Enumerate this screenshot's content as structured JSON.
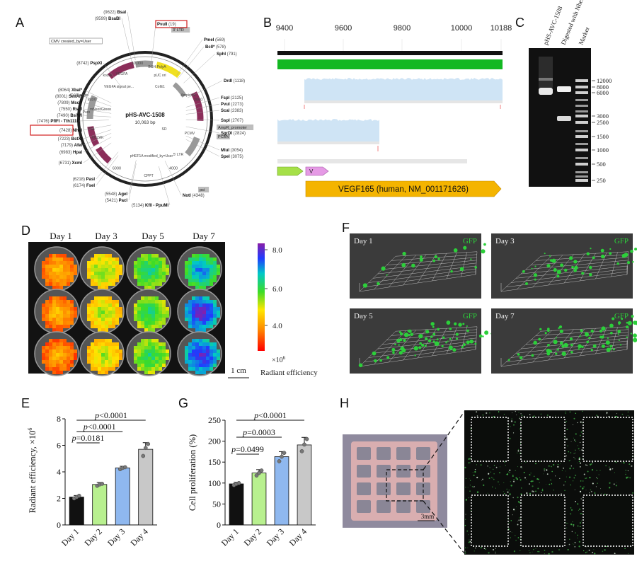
{
  "colors": {
    "plasmid_block": "#8b2e5a",
    "gray_feature": "#9a9a9a",
    "yellow_feature": "#f0e020",
    "green_track": "#13b822",
    "coverage_fill": "#cfe4f5",
    "vegf_arrow": "#f4b400",
    "bar_day1": "#111111",
    "bar_day2": "#b8f08f",
    "bar_day3": "#8fb8ef",
    "bar_day4": "#c8c8c8",
    "gfp_dots": "#2ccf3a",
    "highlight_box": "#d11f1f"
  },
  "panels": {
    "A": {
      "letter": "A",
      "plasmid_name": "pHS-AVC-1508",
      "plasmid_size": "10,063 bp",
      "tick_labels": [
        "10,000",
        "2000",
        "4000",
        "6000",
        "8000"
      ],
      "inner_labels": [
        "kozak",
        "VEGFA",
        "BGH PolyA",
        "VEGFA signal pe...",
        "CoIE1",
        "pUC ori",
        "SD",
        "pHEF1A modified_by=User",
        "mNeonGreen",
        "P2A",
        "KOZAK",
        "Puro",
        "CPPT",
        "SV40 origin",
        "Ampicillin",
        "PCMV",
        "5' LTR"
      ],
      "features_outside": [
        "3' LTR",
        "AmpR_promoter",
        "PCMV",
        "psi",
        "CMV created_by=User"
      ],
      "sites": [
        {
          "pos": "(9622)",
          "name": "BsaI"
        },
        {
          "pos": "(9599)",
          "name": "BsaBI"
        },
        {
          "pos": "(19)",
          "name": "PvuII"
        },
        {
          "pos": "(569)",
          "name": "PmeI"
        },
        {
          "pos": "(578)",
          "name": "BclI*"
        },
        {
          "pos": "(791)",
          "name": "SphI"
        },
        {
          "pos": "(1118)",
          "name": "DrdI"
        },
        {
          "pos": "(8742)",
          "name": "PspXI"
        },
        {
          "pos": "(8064)",
          "name": "XbaI*"
        },
        {
          "pos": "(8001)",
          "name": "SexAI*"
        },
        {
          "pos": "(7809)",
          "name": "MscI*"
        },
        {
          "pos": "(7550)",
          "name": "RsrII"
        },
        {
          "pos": "(7490)",
          "name": "BsiWI"
        },
        {
          "pos": "(7476)",
          "name": "PflFI - Tth111I"
        },
        {
          "pos": "(7428)",
          "name": "NheI"
        },
        {
          "pos": "(7223)",
          "name": "BstXI"
        },
        {
          "pos": "(7179)",
          "name": "AfeI"
        },
        {
          "pos": "(6983)",
          "name": "HpaI"
        },
        {
          "pos": "(6731)",
          "name": "XcmI"
        },
        {
          "pos": "(2125)",
          "name": "FspI"
        },
        {
          "pos": "(2273)",
          "name": "PvuI"
        },
        {
          "pos": "(2383)",
          "name": "ScaI"
        },
        {
          "pos": "(2707)",
          "name": "SspI"
        },
        {
          "pos": "(2824)",
          "name": "SgrDI"
        },
        {
          "pos": "(3054)",
          "name": "MluI"
        },
        {
          "pos": "(3075)",
          "name": "SpeI"
        },
        {
          "pos": "(6218)",
          "name": "PasI"
        },
        {
          "pos": "(6174)",
          "name": "FseI"
        },
        {
          "pos": "(5548)",
          "name": "AgeI"
        },
        {
          "pos": "(5421)",
          "name": "PacI"
        },
        {
          "pos": "(4348)",
          "name": "NotI"
        },
        {
          "pos": "(5134)",
          "name": "KflI - PpuMI"
        }
      ]
    },
    "B": {
      "letter": "B",
      "ticks": [
        "9400",
        "9600",
        "9800",
        "10000",
        "10188"
      ],
      "small_arrow_label": "V",
      "gene_label": "VEGF165 (human, NM_001171626)"
    },
    "C": {
      "letter": "C",
      "lane_labels": [
        "pHS-AVC-1508",
        "Digested  with NheI/PvuII",
        "Marker"
      ],
      "marker_sizes": [
        "12000",
        "8000",
        "6000",
        "3000",
        "2500",
        "1500",
        "1000",
        "500",
        "250"
      ]
    },
    "D": {
      "letter": "D",
      "day_labels": [
        "Day 1",
        "Day 3",
        "Day 5",
        "Day 7"
      ],
      "scale_bar": "1 cm",
      "colorbar_ticks": [
        "8.0",
        "6.0",
        "4.0"
      ],
      "colorbar_multiplier": "×10",
      "colorbar_exponent": "6",
      "colorbar_title": "Radiant efficiency",
      "well_levels": [
        [
          0.25,
          0.45,
          0.58,
          0.66
        ],
        [
          0.25,
          0.42,
          0.56,
          0.82
        ],
        [
          0.22,
          0.4,
          0.55,
          0.8
        ]
      ]
    },
    "E": {
      "letter": "E",
      "ylabel_text": "Radiant efficiency, ×10",
      "ylabel_exp": "6"
    },
    "F": {
      "letter": "F",
      "views": [
        {
          "day": "Day 1",
          "tag": "GFP",
          "density": 22
        },
        {
          "day": "Day 3",
          "tag": "GFP",
          "density": 38
        },
        {
          "day": "Day 5",
          "tag": "GFP",
          "density": 70
        },
        {
          "day": "Day 7",
          "tag": "GFP",
          "density": 85
        }
      ]
    },
    "G": {
      "letter": "G",
      "ylabel": "Cell proliferation (%)"
    },
    "H": {
      "letter": "H",
      "scale_bar": "3mm"
    }
  },
  "chart_data": [
    {
      "type": "bar",
      "panel": "E",
      "categories": [
        "Day 1",
        "Day 2",
        "Day 3",
        "Day 4"
      ],
      "values": [
        2.1,
        3.05,
        4.3,
        5.7
      ],
      "errors": [
        0.12,
        0.15,
        0.12,
        0.5
      ],
      "points": [
        [
          2.0,
          2.1,
          2.2
        ],
        [
          2.95,
          3.05,
          3.1
        ],
        [
          4.2,
          4.3,
          4.35
        ],
        [
          5.2,
          5.8,
          6.1
        ]
      ],
      "ylabel": "Radiant efficiency, ×10^6",
      "ylim": [
        0,
        8
      ],
      "yticks": [
        "0",
        "2",
        "4",
        "6",
        "8"
      ],
      "annotations": [
        "p=0.0181",
        "p<0.0001",
        "p<0.0001"
      ],
      "annotation_spans": [
        [
          0,
          1
        ],
        [
          0,
          2
        ],
        [
          0,
          3
        ]
      ]
    },
    {
      "type": "bar",
      "panel": "G",
      "categories": [
        "Day 1",
        "Day 2",
        "Day 3",
        "Day 4"
      ],
      "values": [
        98,
        124,
        163,
        191
      ],
      "errors": [
        4,
        8,
        12,
        18
      ],
      "points": [
        [
          95,
          98,
          100
        ],
        [
          118,
          124,
          130
        ],
        [
          152,
          163,
          172
        ],
        [
          176,
          192,
          205
        ]
      ],
      "ylabel": "Cell proliferation (%)",
      "ylim": [
        0,
        250
      ],
      "yticks": [
        "0",
        "50",
        "100",
        "150",
        "200",
        "250"
      ],
      "annotations": [
        "p=0.0499",
        "p=0.0003",
        "p<0.0001"
      ],
      "annotation_spans": [
        [
          0,
          1
        ],
        [
          0,
          2
        ],
        [
          0,
          3
        ]
      ]
    }
  ]
}
